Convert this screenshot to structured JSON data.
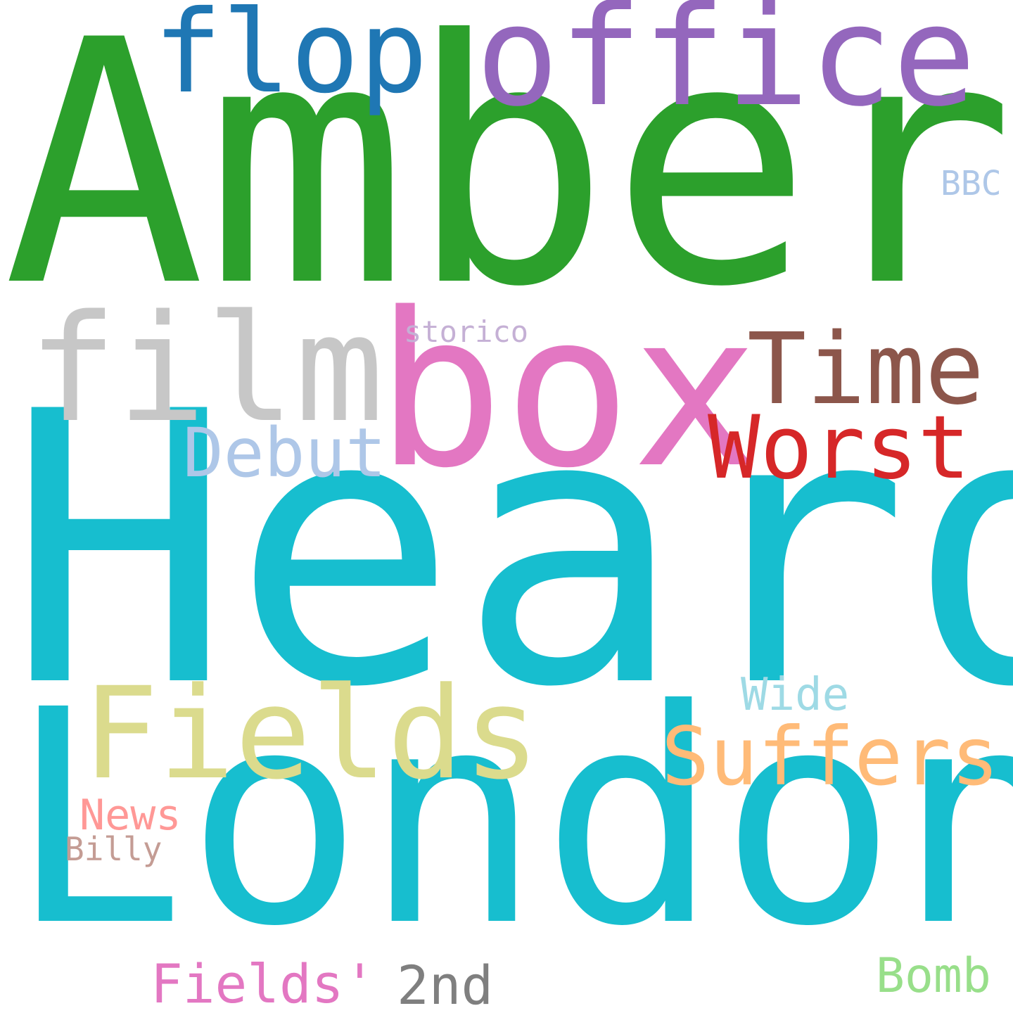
{
  "words": [
    {
      "id": "amber",
      "text": "Amber",
      "color": "#2ca02c"
    },
    {
      "id": "heard",
      "text": "Heard",
      "color": "#17becf"
    },
    {
      "id": "london",
      "text": "London",
      "color": "#17becf"
    },
    {
      "id": "box",
      "text": "box",
      "color": "#e377c2"
    },
    {
      "id": "office",
      "text": "office",
      "color": "#9467bd"
    },
    {
      "id": "film",
      "text": "film",
      "color": "#c7c7c7"
    },
    {
      "id": "flop",
      "text": "flop",
      "color": "#1f77b4"
    },
    {
      "id": "fields",
      "text": "Fields",
      "color": "#dbdb8d"
    },
    {
      "id": "time",
      "text": "Time",
      "color": "#8c564b"
    },
    {
      "id": "worst",
      "text": "Worst",
      "color": "#d62728"
    },
    {
      "id": "suffers",
      "text": "Suffers",
      "color": "#ffbb78"
    },
    {
      "id": "debut",
      "text": "Debut",
      "color": "#aec7e8"
    },
    {
      "id": "fields2",
      "text": "Fields'",
      "color": "#e377c2"
    },
    {
      "id": "bomb",
      "text": "Bomb",
      "color": "#98df8a"
    },
    {
      "id": "2nd",
      "text": "2nd",
      "color": "#7f7f7f"
    },
    {
      "id": "wide",
      "text": "Wide",
      "color": "#9edae5"
    },
    {
      "id": "news",
      "text": "News",
      "color": "#ff9896"
    },
    {
      "id": "bbc",
      "text": "BBC",
      "color": "#aec7e8"
    },
    {
      "id": "billy",
      "text": "Billy",
      "color": "#c49c94"
    },
    {
      "id": "storico",
      "text": "storico",
      "color": "#c5b0d5"
    }
  ]
}
